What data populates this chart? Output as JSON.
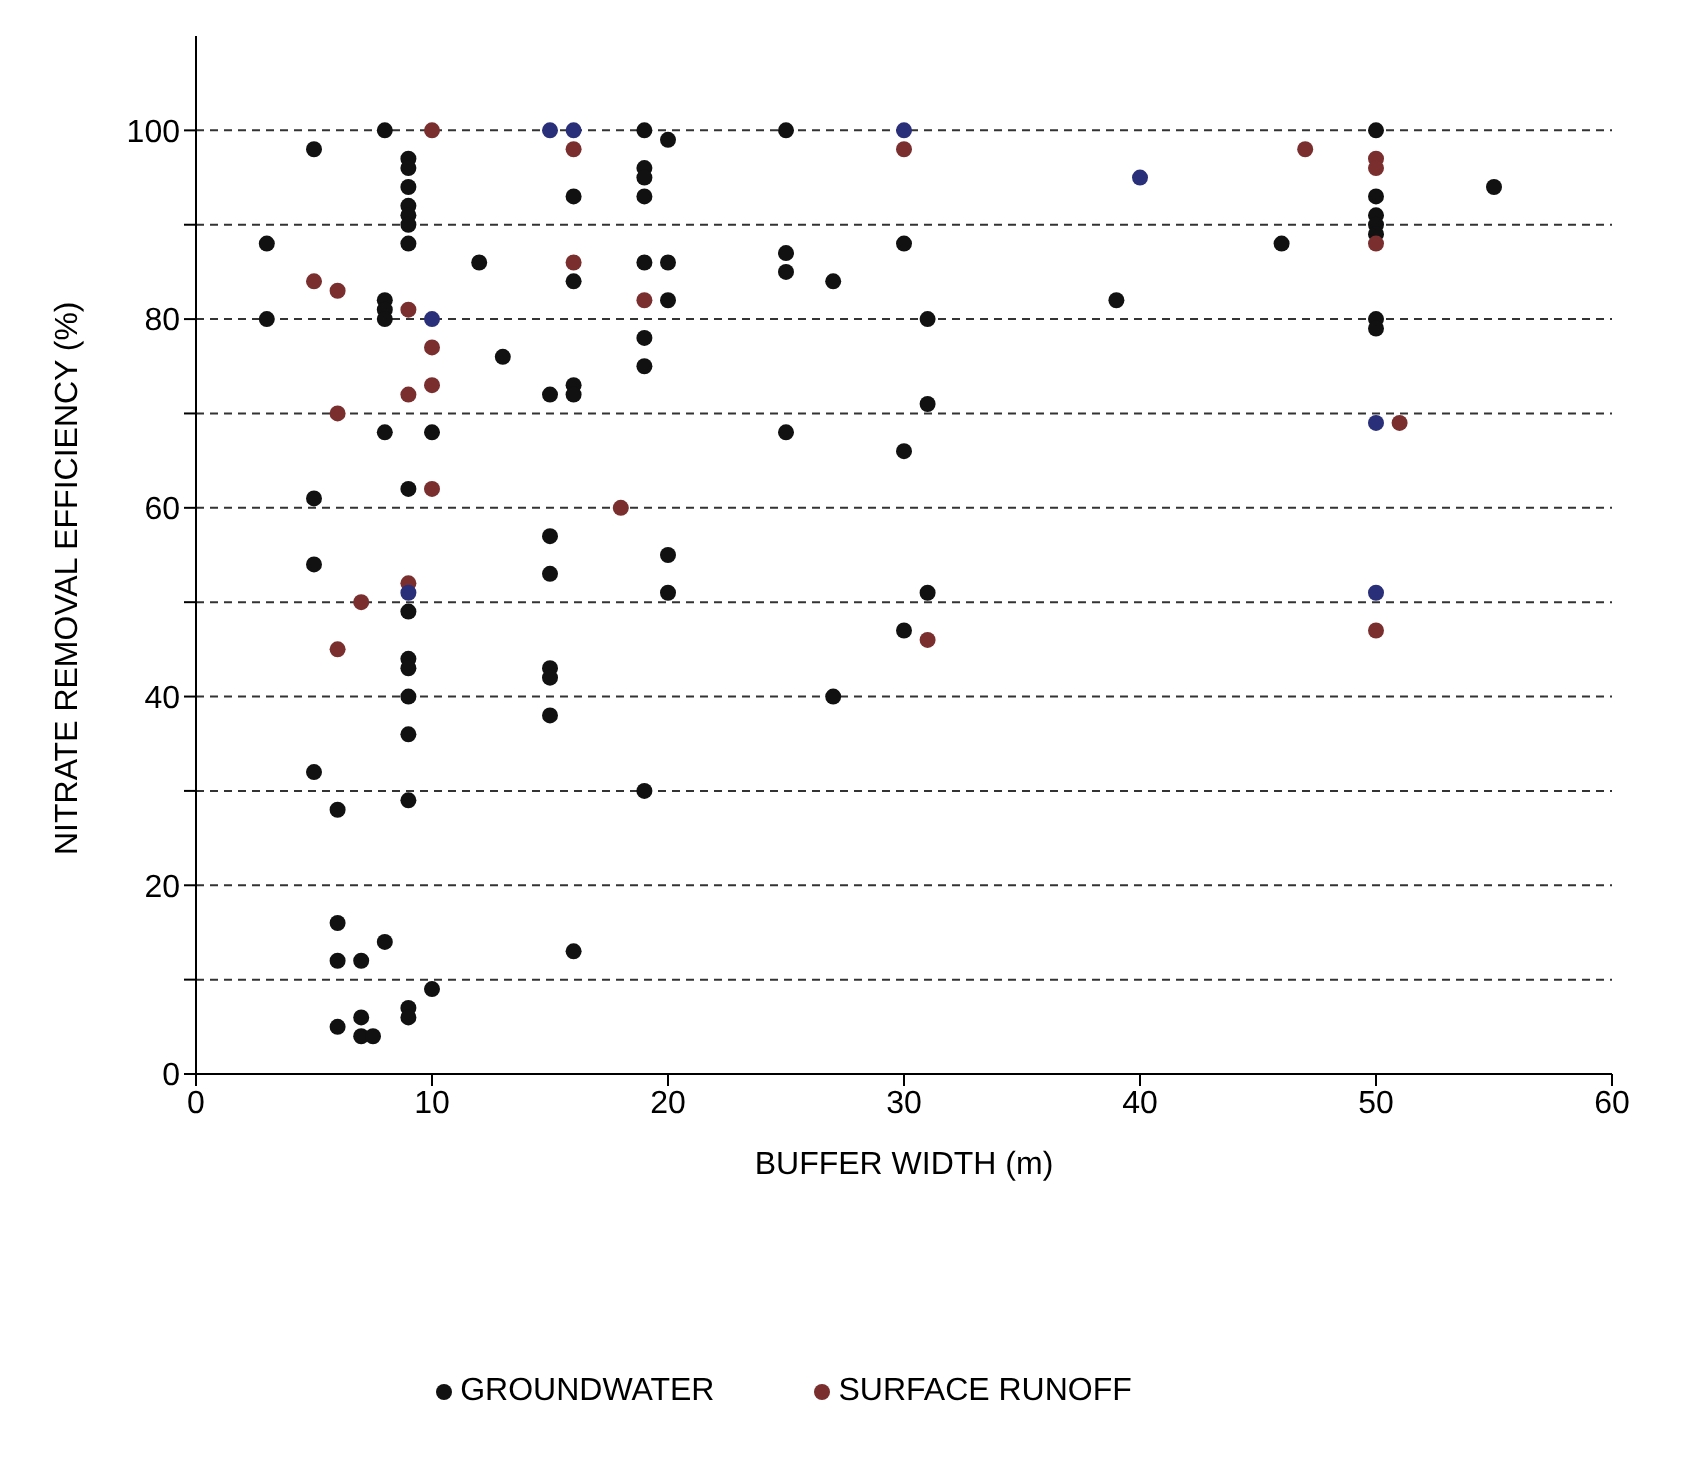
{
  "chart_data": {
    "type": "scatter",
    "xlabel": "BUFFER WIDTH (m)",
    "ylabel": "NITRATE REMOVAL EFFICIENCY (%)",
    "xlim": [
      0,
      60
    ],
    "xticks": [
      0,
      10,
      20,
      30,
      40,
      50,
      60
    ],
    "ylim": [
      0,
      110
    ],
    "yticks": [
      0,
      {
        "value": 10,
        "label": null
      },
      20,
      {
        "value": 30,
        "label": null
      },
      40,
      {
        "value": 50,
        "label": null
      },
      60,
      {
        "value": 70,
        "label": null
      },
      80,
      {
        "value": 90,
        "label": null
      },
      100
    ],
    "grid": "y",
    "legend": "bottom",
    "marker": "circle",
    "series": [
      {
        "name": "GROUNDWATER",
        "color": "#111111",
        "x": [
          8,
          5,
          9,
          9,
          9,
          9,
          9,
          9,
          9,
          3,
          12,
          8,
          8,
          8,
          3,
          13,
          8,
          10,
          9,
          5,
          5,
          9,
          9,
          9,
          9,
          9,
          5,
          9,
          6,
          6,
          6,
          7,
          8,
          10,
          6,
          7,
          7,
          7.5,
          9,
          9,
          19,
          20,
          25,
          19,
          19,
          16,
          19,
          19,
          20,
          25,
          25,
          30,
          16,
          27,
          20,
          31,
          19,
          19,
          15,
          16,
          16,
          31,
          25,
          30,
          15,
          15,
          20,
          20,
          31,
          30,
          15,
          15,
          15,
          27,
          19,
          16,
          50,
          55,
          50,
          50,
          50,
          50,
          46,
          39,
          50,
          50
        ],
        "values": [
          100,
          98,
          97,
          96,
          94,
          92,
          91,
          90,
          88,
          88,
          86,
          82,
          81,
          80,
          80,
          76,
          68,
          68,
          62,
          61,
          54,
          49,
          44,
          43,
          40,
          36,
          32,
          29,
          28,
          16,
          12,
          12,
          14,
          9,
          5,
          6,
          4,
          4,
          7,
          6,
          100,
          99,
          100,
          96,
          95,
          93,
          93,
          86,
          86,
          87,
          85,
          88,
          84,
          84,
          82,
          80,
          78,
          75,
          72,
          73,
          72,
          71,
          68,
          66,
          57,
          53,
          55,
          51,
          51,
          47,
          43,
          42,
          38,
          40,
          30,
          13,
          100,
          94,
          93,
          91,
          90,
          89,
          88,
          82,
          80,
          79
        ]
      },
      {
        "name": "SURFACE RUNOFF",
        "color": "#7a2e2e",
        "x": [
          10,
          5,
          6,
          9,
          10,
          10,
          10,
          9,
          6,
          10,
          9,
          9,
          7,
          6,
          15,
          16,
          30,
          16,
          30,
          16,
          19,
          18,
          31,
          47,
          50,
          50,
          40,
          50,
          50,
          51,
          50,
          50
        ],
        "values": [
          100,
          84,
          83,
          81,
          80,
          77,
          73,
          72,
          70,
          62,
          52,
          51,
          50,
          45,
          100,
          100,
          100,
          98,
          98,
          86,
          82,
          60,
          46,
          98,
          97,
          96,
          95,
          88,
          69,
          69,
          51,
          47
        ],
        "colors": [
          "#7a2e2e",
          "#7a2e2e",
          "#7a2e2e",
          "#7a2e2e",
          "#2a2f7a",
          "#7a2e2e",
          "#7a2e2e",
          "#7a2e2e",
          "#7a2e2e",
          "#7a2e2e",
          "#7a2e2e",
          "#2a2f7a",
          "#7a2e2e",
          "#7a2e2e",
          "#2a2f7a",
          "#2a2f7a",
          "#2a2f7a",
          "#7a2e2e",
          "#7a2e2e",
          "#7a2e2e",
          "#7a2e2e",
          "#7a2e2e",
          "#7a2e2e",
          "#7a2e2e",
          "#7a2e2e",
          "#7a2e2e",
          "#2a2f7a",
          "#7a2e2e",
          "#2a2f7a",
          "#7a2e2e",
          "#2a2f7a",
          "#7a2e2e"
        ]
      }
    ]
  }
}
